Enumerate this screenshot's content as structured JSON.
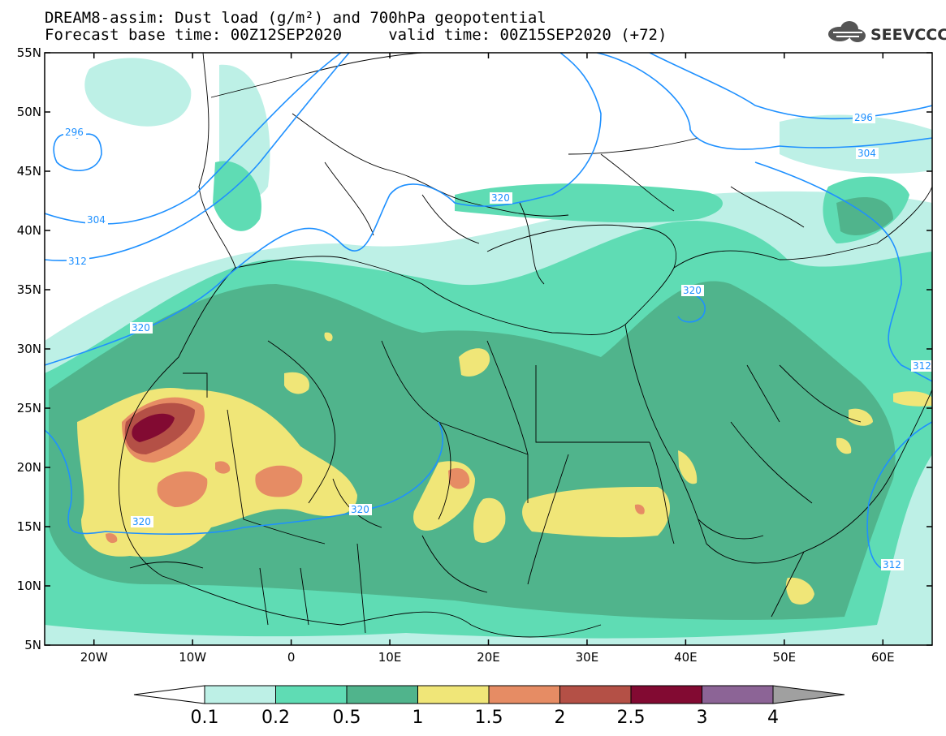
{
  "title": {
    "line1": "DREAM8-assim: Dust load (g/m²) and 700hPa geopotential",
    "line2": "Forecast base time: 00Z12SEP2020     valid time: 00Z15SEP2020 (+72)"
  },
  "logo": {
    "text": "SEEVCCC",
    "icon": "cloud-icon"
  },
  "map": {
    "lon_range": [
      -25,
      65
    ],
    "lat_range": [
      5,
      55
    ],
    "lat_labels": [
      "55N",
      "50N",
      "45N",
      "40N",
      "35N",
      "30N",
      "25N",
      "20N",
      "15N",
      "10N",
      "5N"
    ],
    "lon_labels": [
      "20W",
      "10W",
      "0",
      "10E",
      "20E",
      "30E",
      "40E",
      "50E",
      "60E"
    ],
    "contour_labels": [
      "296",
      "304",
      "312",
      "320",
      "320",
      "320",
      "320",
      "304",
      "296",
      "312",
      "312",
      "320"
    ]
  },
  "colorbar": {
    "levels": [
      "0.1",
      "0.2",
      "0.5",
      "1",
      "1.5",
      "2",
      "2.5",
      "3",
      "4"
    ],
    "colors": [
      "#bdf0e6",
      "#5fdcb4",
      "#50b48c",
      "#f0e678",
      "#e68c64",
      "#b45046",
      "#820a32",
      "#8c6496"
    ],
    "under_color": "#ffffff",
    "over_color": "#a0a0a0"
  },
  "colors": {
    "contour": "#1e90ff",
    "light_cyan": "#bdf0e6",
    "green": "#5fdcb4",
    "dark_green": "#50b48c",
    "yellow": "#f0e678",
    "orange": "#e68c64",
    "brown": "#b45046",
    "maroon": "#820a32"
  }
}
